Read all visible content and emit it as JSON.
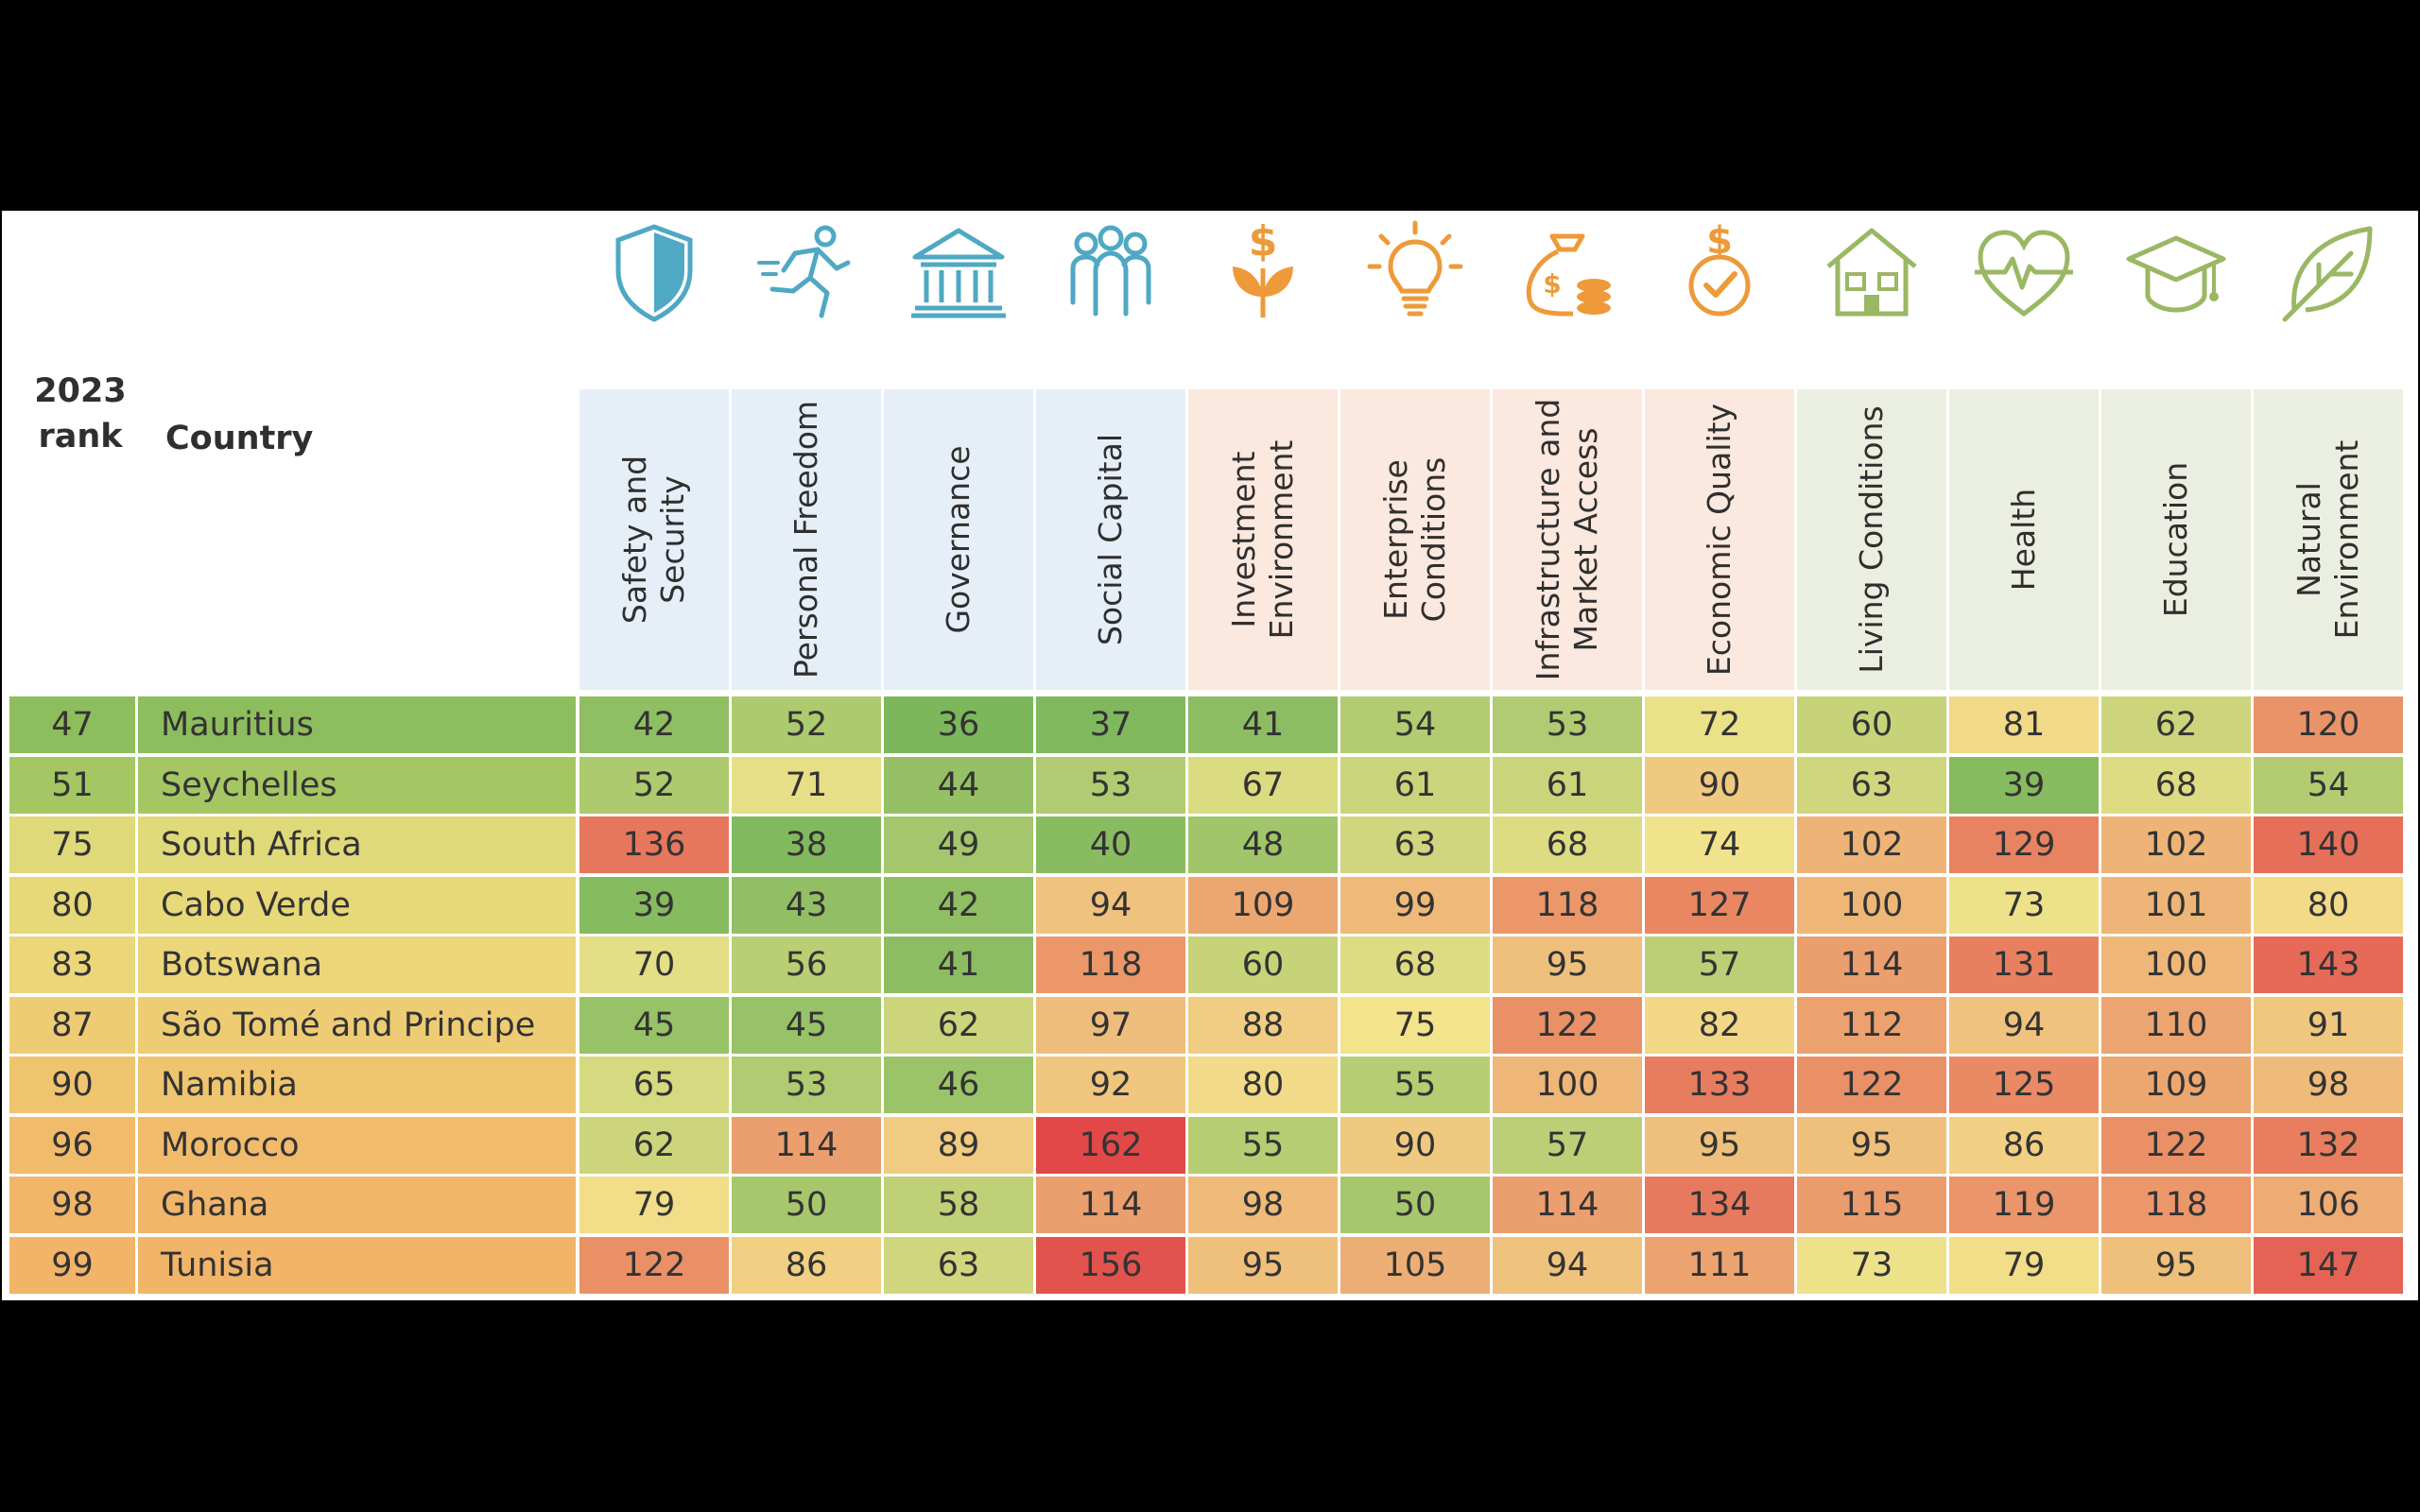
{
  "table": {
    "rank_header": "2023 rank",
    "country_header": "Country"
  },
  "chart_data": {
    "type": "table",
    "columns": [
      "Safety and Security",
      "Personal Freedom",
      "Governance",
      "Social Capital",
      "Investment Environment",
      "Enterprise Conditions",
      "Infrastructure and Market Access",
      "Economic Quality",
      "Living Conditions",
      "Health",
      "Education",
      "Natural Environment"
    ],
    "column_groups": [
      {
        "columns": [
          0,
          1,
          2,
          3
        ],
        "header_color": "#e6eff7",
        "icon_color": "#4fa8c4"
      },
      {
        "columns": [
          4,
          5,
          6,
          7
        ],
        "header_color": "#fbe8de",
        "icon_color": "#ee9a3a"
      },
      {
        "columns": [
          8,
          9,
          10,
          11
        ],
        "header_color": "#ebefe1",
        "icon_color": "#9ab863"
      }
    ],
    "icons": [
      "shield-icon",
      "running-person-icon",
      "government-building-icon",
      "people-group-icon",
      "dollar-plant-icon",
      "lightbulb-icon",
      "money-bag-coins-icon",
      "dollar-check-icon",
      "house-icon",
      "heart-pulse-icon",
      "graduation-cap-icon",
      "leaf-icon"
    ],
    "rows": [
      {
        "rank": "47",
        "country": "Mauritius",
        "values": [
          42,
          52,
          36,
          37,
          41,
          54,
          53,
          72,
          60,
          81,
          62,
          120
        ]
      },
      {
        "rank": "51",
        "country": "Seychelles",
        "values": [
          52,
          71,
          44,
          53,
          67,
          61,
          61,
          90,
          63,
          39,
          68,
          54
        ]
      },
      {
        "rank": "75",
        "country": "South Africa",
        "values": [
          136,
          38,
          49,
          40,
          48,
          63,
          68,
          74,
          102,
          129,
          102,
          140
        ]
      },
      {
        "rank": "80",
        "country": "Cabo Verde",
        "values": [
          39,
          43,
          42,
          94,
          109,
          99,
          118,
          127,
          100,
          73,
          101,
          80
        ]
      },
      {
        "rank": "83",
        "country": "Botswana",
        "values": [
          70,
          56,
          41,
          118,
          60,
          68,
          95,
          57,
          114,
          131,
          100,
          143
        ]
      },
      {
        "rank": "87",
        "country": "São Tomé and Principe",
        "values": [
          45,
          45,
          62,
          97,
          88,
          75,
          122,
          82,
          112,
          94,
          110,
          91
        ]
      },
      {
        "rank": "90",
        "country": "Namibia",
        "values": [
          65,
          53,
          46,
          92,
          80,
          55,
          100,
          133,
          122,
          125,
          109,
          98
        ]
      },
      {
        "rank": "96",
        "country": "Morocco",
        "values": [
          62,
          114,
          89,
          162,
          55,
          90,
          57,
          95,
          95,
          86,
          122,
          132
        ]
      },
      {
        "rank": "98",
        "country": "Ghana",
        "values": [
          79,
          50,
          58,
          114,
          98,
          50,
          114,
          134,
          115,
          119,
          118,
          106
        ]
      },
      {
        "rank": "99",
        "country": "Tunisia",
        "values": [
          122,
          86,
          63,
          156,
          95,
          105,
          94,
          111,
          73,
          79,
          95,
          147
        ]
      }
    ],
    "color_scale": {
      "low": "#7ab65a",
      "mid": "#f3e48c",
      "high": "#e24848",
      "row_label_colors": [
        "#8dbd5c",
        "#a4c763",
        "#dfd97a",
        "#e7d878",
        "#ebd679",
        "#eecc74",
        "#efc46f",
        "#f1bb6c",
        "#f1b66a",
        "#f1b469"
      ]
    }
  }
}
